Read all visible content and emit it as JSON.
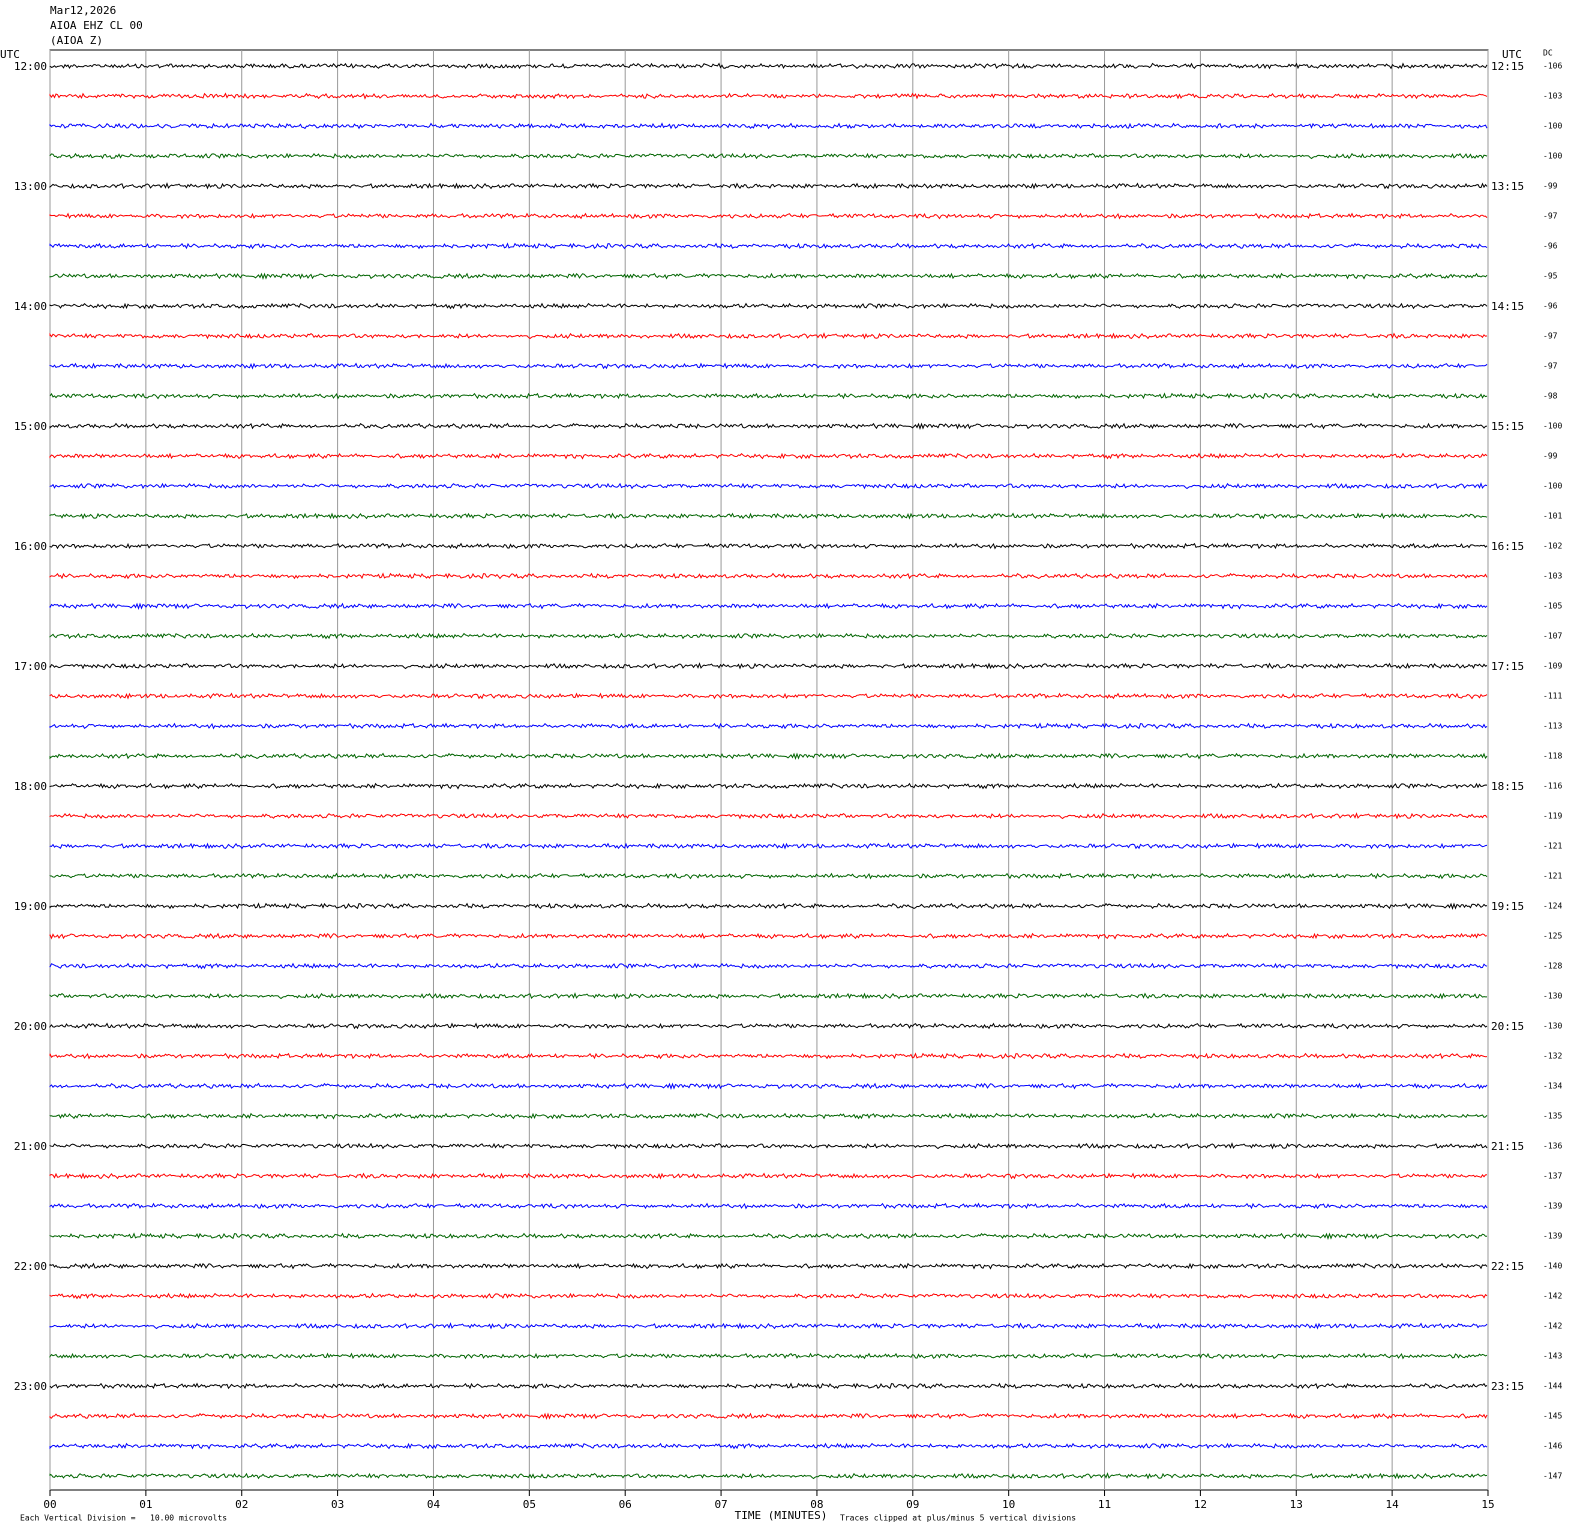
{
  "header": {
    "date": "Mar12,2026",
    "station": "AIOA EHZ CL 00",
    "component": "(AIOA Z)"
  },
  "left_unit": "UTC",
  "right_unit": "UTC",
  "dc_label": "DC",
  "left_times": [
    "12:00",
    "13:00",
    "14:00",
    "15:00",
    "16:00",
    "17:00",
    "18:00",
    "19:00",
    "20:00",
    "21:00",
    "22:00",
    "23:00"
  ],
  "right_times": [
    "12:15",
    "13:15",
    "14:15",
    "15:15",
    "16:15",
    "17:15",
    "18:15",
    "19:15",
    "20:15",
    "21:15",
    "22:15",
    "23:15"
  ],
  "dc_values": [
    -106,
    -103,
    -100,
    -100,
    -99,
    -97,
    -96,
    -95,
    -96,
    -97,
    -97,
    -98,
    -100,
    -99,
    -100,
    -101,
    -102,
    -103,
    -105,
    -107,
    -109,
    -111,
    -113,
    -118,
    -116,
    -119,
    -121,
    -121,
    -124,
    -125,
    -128,
    -130,
    -130,
    -132,
    -134,
    -135,
    -136,
    -137,
    -139,
    -139,
    -140,
    -142,
    -142,
    -143,
    -144,
    -145,
    -146,
    -147
  ],
  "trace_colors": [
    "#000000",
    "#ff0000",
    "#0000ff",
    "#006400"
  ],
  "x_axis": {
    "label": "TIME (MINUTES)",
    "lim": [
      0,
      15
    ],
    "ticks": [
      {
        "value": 0,
        "label": "00"
      },
      {
        "value": 1,
        "label": "01"
      },
      {
        "value": 2,
        "label": "02"
      },
      {
        "value": 3,
        "label": "03"
      },
      {
        "value": 4,
        "label": "04"
      },
      {
        "value": 5,
        "label": "05"
      },
      {
        "value": 6,
        "label": "06"
      },
      {
        "value": 7,
        "label": "07"
      },
      {
        "value": 8,
        "label": "08"
      },
      {
        "value": 9,
        "label": "09"
      },
      {
        "value": 10,
        "label": "10"
      },
      {
        "value": 11,
        "label": "11"
      },
      {
        "value": 12,
        "label": "12"
      },
      {
        "value": 13,
        "label": "13"
      },
      {
        "value": 14,
        "label": "14"
      },
      {
        "value": 15,
        "label": "15"
      }
    ]
  },
  "footer": {
    "division": "Each Vertical Division =   10.00 microvolts",
    "clipped": "Traces clipped at plus/minus 5 vertical divisions"
  }
}
